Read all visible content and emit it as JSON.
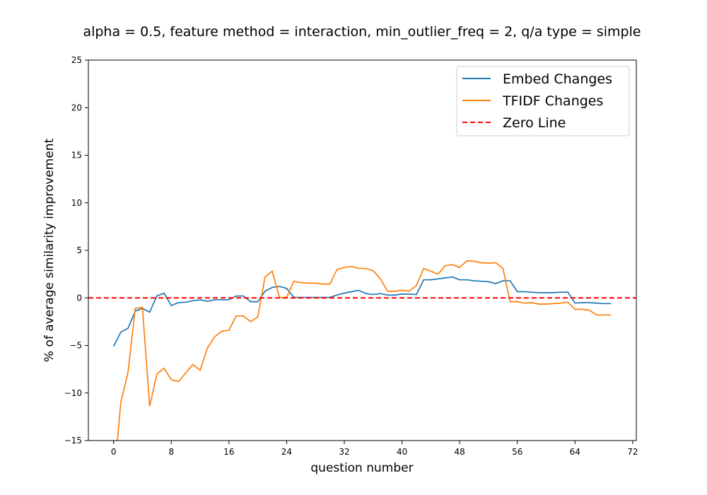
{
  "chart_data": {
    "type": "line",
    "title": "alpha = 0.5,  feature method = interaction, min_outlier_freq = 2,  q/a type = simple",
    "xlabel": "question number",
    "ylabel": "% of average similarity improvement",
    "xlim": [
      -3.5,
      72.5
    ],
    "ylim": [
      -15,
      25
    ],
    "xticks": [
      0,
      8,
      16,
      24,
      32,
      40,
      48,
      56,
      64,
      72
    ],
    "yticks": [
      -15,
      -10,
      -5,
      0,
      5,
      10,
      15,
      20,
      25
    ],
    "grid": false,
    "legend_position": "top-right",
    "series": [
      {
        "name": "Embed Changes",
        "color": "#1f77b4",
        "style": "solid",
        "x": [
          0,
          1,
          2,
          3,
          4,
          5,
          6,
          7,
          8,
          9,
          10,
          11,
          12,
          13,
          14,
          15,
          16,
          17,
          18,
          19,
          20,
          21,
          22,
          23,
          24,
          25,
          26,
          27,
          28,
          29,
          30,
          31,
          32,
          33,
          34,
          35,
          36,
          37,
          38,
          39,
          40,
          41,
          42,
          43,
          44,
          45,
          46,
          47,
          48,
          49,
          50,
          51,
          52,
          53,
          54,
          55,
          56,
          57,
          58,
          59,
          60,
          61,
          62,
          63,
          64,
          65,
          66,
          67,
          68,
          69
        ],
        "values": [
          -5.1,
          -3.6,
          -3.2,
          -1.4,
          -1.1,
          -1.5,
          0.2,
          0.5,
          -0.8,
          -0.5,
          -0.45,
          -0.3,
          -0.2,
          -0.35,
          -0.2,
          -0.2,
          -0.2,
          0.2,
          0.2,
          -0.4,
          -0.4,
          0.7,
          1.1,
          1.2,
          1.0,
          0.05,
          0.05,
          0.05,
          0.05,
          0.05,
          0.05,
          0.3,
          0.5,
          0.65,
          0.8,
          0.45,
          0.35,
          0.45,
          0.3,
          0.3,
          0.4,
          0.4,
          0.35,
          1.9,
          1.9,
          2.0,
          2.1,
          2.2,
          1.9,
          1.9,
          1.8,
          1.75,
          1.7,
          1.5,
          1.8,
          1.8,
          0.65,
          0.65,
          0.6,
          0.55,
          0.55,
          0.55,
          0.6,
          0.6,
          -0.55,
          -0.5,
          -0.5,
          -0.55,
          -0.6,
          -0.6
        ]
      },
      {
        "name": "TFIDF Changes",
        "color": "#ff7f0e",
        "style": "solid",
        "x": [
          0,
          1,
          2,
          3,
          4,
          5,
          6,
          7,
          8,
          9,
          10,
          11,
          12,
          13,
          14,
          15,
          16,
          17,
          18,
          19,
          20,
          21,
          22,
          23,
          24,
          25,
          26,
          27,
          28,
          29,
          30,
          31,
          32,
          33,
          34,
          35,
          36,
          37,
          38,
          39,
          40,
          41,
          42,
          43,
          44,
          45,
          46,
          47,
          48,
          49,
          50,
          51,
          52,
          53,
          54,
          55,
          56,
          57,
          58,
          59,
          60,
          61,
          62,
          63,
          64,
          65,
          66,
          67,
          68,
          69
        ],
        "values": [
          -19.5,
          -11.0,
          -7.8,
          -1.1,
          -1.0,
          -11.4,
          -8.0,
          -7.4,
          -8.6,
          -8.8,
          -7.9,
          -7.0,
          -7.6,
          -5.3,
          -4.1,
          -3.5,
          -3.4,
          -1.9,
          -1.9,
          -2.5,
          -2.0,
          2.2,
          2.8,
          0.05,
          0.05,
          1.75,
          1.6,
          1.55,
          1.55,
          1.45,
          1.45,
          3.0,
          3.2,
          3.3,
          3.1,
          3.1,
          2.85,
          2.0,
          0.7,
          0.7,
          0.8,
          0.7,
          1.3,
          3.1,
          2.8,
          2.5,
          3.4,
          3.5,
          3.2,
          3.9,
          3.85,
          3.7,
          3.65,
          3.7,
          3.1,
          -0.4,
          -0.4,
          -0.55,
          -0.5,
          -0.65,
          -0.65,
          -0.6,
          -0.55,
          -0.45,
          -1.2,
          -1.2,
          -1.3,
          -1.8,
          -1.8,
          -1.8
        ]
      },
      {
        "name": "Zero Line",
        "color": "#ff0000",
        "style": "dashed",
        "x": [
          -3.5,
          72.5
        ],
        "values": [
          0,
          0
        ]
      }
    ]
  }
}
